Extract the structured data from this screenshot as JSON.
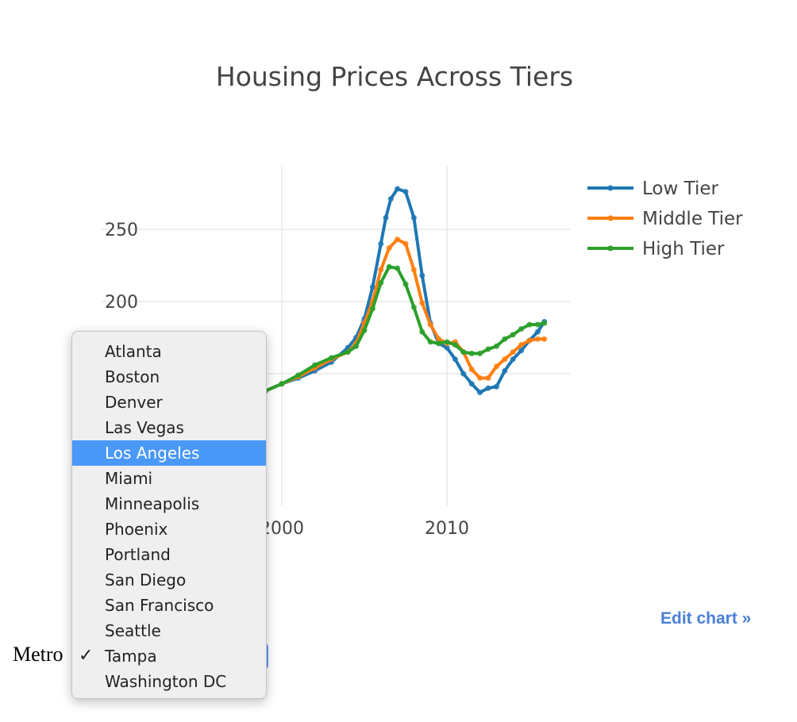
{
  "chart_data": {
    "type": "line",
    "title": "Housing Prices Across Tiers",
    "xlabel": "",
    "ylabel": "",
    "xlim": [
      1993.5,
      2017
    ],
    "ylim": [
      135,
      285
    ],
    "x_ticks": [
      2000,
      2010
    ],
    "y_ticks": [
      250,
      200
    ],
    "grid": true,
    "legend_position": "top-right",
    "series": [
      {
        "name": "Low Tier",
        "color": "#1f77b4",
        "x": [
          1997,
          1998,
          1999,
          2000,
          2001,
          2002,
          2003,
          2004,
          2004.5,
          2005,
          2005.5,
          2006,
          2006.3,
          2006.6,
          2007,
          2007.5,
          2008,
          2008.5,
          2009,
          2009.5,
          2010,
          2010.5,
          2011,
          2011.5,
          2012,
          2012.5,
          2013,
          2013.5,
          2014,
          2014.5,
          2015,
          2015.5,
          2015.9
        ],
        "values": [
          131,
          134,
          138,
          143,
          147,
          152,
          158,
          168,
          175,
          188,
          210,
          240,
          258,
          271,
          278,
          276,
          258,
          218,
          185,
          171,
          168,
          160,
          150,
          143,
          137,
          140,
          141,
          152,
          160,
          166,
          173,
          179,
          186
        ]
      },
      {
        "name": "Middle Tier",
        "color": "#ff7f0e",
        "x": [
          1997,
          1998,
          1999,
          2000,
          2001,
          2002,
          2003,
          2004,
          2004.5,
          2005,
          2005.5,
          2006,
          2006.5,
          2007,
          2007.5,
          2008,
          2008.5,
          2009,
          2009.5,
          2010,
          2010.5,
          2011,
          2011.5,
          2012,
          2012.5,
          2013,
          2013.5,
          2014,
          2014.5,
          2015,
          2015.5,
          2015.9
        ],
        "values": [
          131,
          134,
          138,
          143,
          148,
          154,
          160,
          165,
          171,
          185,
          200,
          222,
          237,
          243,
          240,
          222,
          199,
          184,
          174,
          171,
          172,
          165,
          153,
          147,
          147,
          155,
          160,
          165,
          170,
          173,
          174,
          174
        ]
      },
      {
        "name": "High Tier",
        "color": "#2ca02c",
        "x": [
          1997,
          1998,
          1999,
          2000,
          2001,
          2002,
          2003,
          2004,
          2004.5,
          2005,
          2005.5,
          2006,
          2006.5,
          2007,
          2007.5,
          2008,
          2008.5,
          2009,
          2009.5,
          2010,
          2010.5,
          2011,
          2011.5,
          2012,
          2012.5,
          2013,
          2013.5,
          2014,
          2014.5,
          2015,
          2015.5,
          2015.9
        ],
        "values": [
          131,
          134,
          138,
          143,
          149,
          156,
          161,
          165,
          169,
          180,
          195,
          213,
          224,
          223,
          212,
          196,
          179,
          172,
          171,
          172,
          170,
          165,
          164,
          164,
          167,
          169,
          174,
          177,
          181,
          184,
          184,
          185
        ]
      }
    ]
  },
  "edit_link": "Edit chart »",
  "metro_label": "Metro",
  "dropdown": {
    "options": [
      "Atlanta",
      "Boston",
      "Denver",
      "Las Vegas",
      "Los Angeles",
      "Miami",
      "Minneapolis",
      "Phoenix",
      "Portland",
      "San Diego",
      "San Francisco",
      "Seattle",
      "Tampa",
      "Washington DC"
    ],
    "highlighted": "Los Angeles",
    "selected": "Tampa",
    "checkmark": "✓"
  }
}
